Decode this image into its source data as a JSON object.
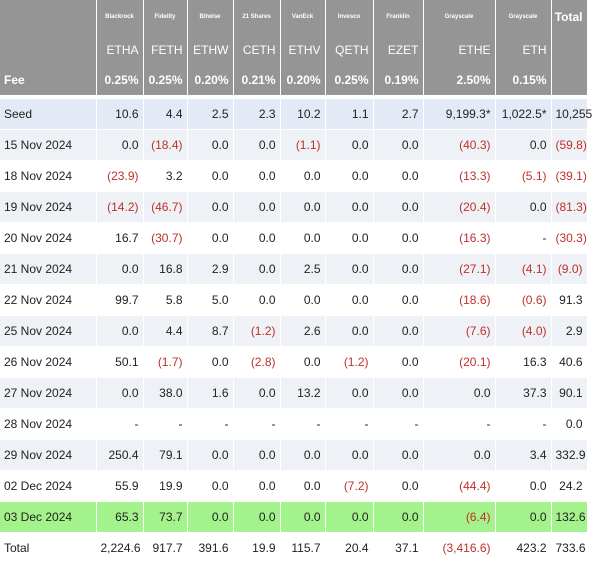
{
  "issuers": [
    "Blackrock",
    "Fidelity",
    "Bitwise",
    "21 Shares",
    "VanEck",
    "Invesco",
    "Franklin",
    "Grayscale",
    "Grayscale"
  ],
  "total_label": "Total",
  "tickers": [
    "ETHA",
    "FETH",
    "ETHW",
    "CETH",
    "ETHV",
    "QETH",
    "EZET",
    "ETHE",
    "ETH"
  ],
  "fee": {
    "label": "Fee",
    "values": [
      "0.25%",
      "0.25%",
      "0.20%",
      "0.21%",
      "0.20%",
      "0.25%",
      "0.19%",
      "2.50%",
      "0.15%"
    ]
  },
  "rows": [
    {
      "label": "Seed",
      "values": [
        "10.6",
        "4.4",
        "2.5",
        "2.3",
        "10.2",
        "1.1",
        "2.7",
        "9,199.3*",
        "1,022.5*",
        "10,255"
      ]
    },
    {
      "label": "15 Nov 2024",
      "values": [
        "0.0",
        "(18.4)",
        "0.0",
        "0.0",
        "(1.1)",
        "0.0",
        "0.0",
        "(40.3)",
        "0.0",
        "(59.8)"
      ]
    },
    {
      "label": "18 Nov 2024",
      "values": [
        "(23.9)",
        "3.2",
        "0.0",
        "0.0",
        "0.0",
        "0.0",
        "0.0",
        "(13.3)",
        "(5.1)",
        "(39.1)"
      ]
    },
    {
      "label": "19 Nov 2024",
      "values": [
        "(14.2)",
        "(46.7)",
        "0.0",
        "0.0",
        "0.0",
        "0.0",
        "0.0",
        "(20.4)",
        "0.0",
        "(81.3)"
      ]
    },
    {
      "label": "20 Nov 2024",
      "values": [
        "16.7",
        "(30.7)",
        "0.0",
        "0.0",
        "0.0",
        "0.0",
        "0.0",
        "(16.3)",
        "-",
        "(30.3)"
      ]
    },
    {
      "label": "21 Nov 2024",
      "values": [
        "0.0",
        "16.8",
        "2.9",
        "0.0",
        "2.5",
        "0.0",
        "0.0",
        "(27.1)",
        "(4.1)",
        "(9.0)"
      ]
    },
    {
      "label": "22 Nov 2024",
      "values": [
        "99.7",
        "5.8",
        "5.0",
        "0.0",
        "0.0",
        "0.0",
        "0.0",
        "(18.6)",
        "(0.6)",
        "91.3"
      ]
    },
    {
      "label": "25 Nov 2024",
      "values": [
        "0.0",
        "4.4",
        "8.7",
        "(1.2)",
        "2.6",
        "0.0",
        "0.0",
        "(7.6)",
        "(4.0)",
        "2.9"
      ]
    },
    {
      "label": "26 Nov 2024",
      "values": [
        "50.1",
        "(1.7)",
        "0.0",
        "(2.8)",
        "0.0",
        "(1.2)",
        "0.0",
        "(20.1)",
        "16.3",
        "40.6"
      ]
    },
    {
      "label": "27 Nov 2024",
      "values": [
        "0.0",
        "38.0",
        "1.6",
        "0.0",
        "13.2",
        "0.0",
        "0.0",
        "0.0",
        "37.3",
        "90.1"
      ]
    },
    {
      "label": "28 Nov 2024",
      "values": [
        "-",
        "-",
        "-",
        "-",
        "-",
        "-",
        "-",
        "-",
        "-",
        "0.0"
      ]
    },
    {
      "label": "29 Nov 2024",
      "values": [
        "250.4",
        "79.1",
        "0.0",
        "0.0",
        "0.0",
        "0.0",
        "0.0",
        "0.0",
        "3.4",
        "332.9"
      ]
    },
    {
      "label": "02 Dec 2024",
      "values": [
        "55.9",
        "19.9",
        "0.0",
        "0.0",
        "0.0",
        "(7.2)",
        "0.0",
        "(44.4)",
        "0.0",
        "24.2"
      ]
    },
    {
      "label": "03 Dec 2024",
      "values": [
        "65.3",
        "73.7",
        "0.0",
        "0.0",
        "0.0",
        "0.0",
        "0.0",
        "(6.4)",
        "0.0",
        "132.6"
      ]
    }
  ],
  "totals": {
    "label": "Total",
    "values": [
      "2,224.6",
      "917.7",
      "391.6",
      "19.9",
      "115.7",
      "20.4",
      "37.1",
      "(3,416.6)",
      "423.2",
      "733.6"
    ]
  },
  "colors": {
    "header_bg": "#959595",
    "negative": "#c0302a",
    "highlight_row": "#a4f28b",
    "seed_row": "#e3eaf5"
  }
}
